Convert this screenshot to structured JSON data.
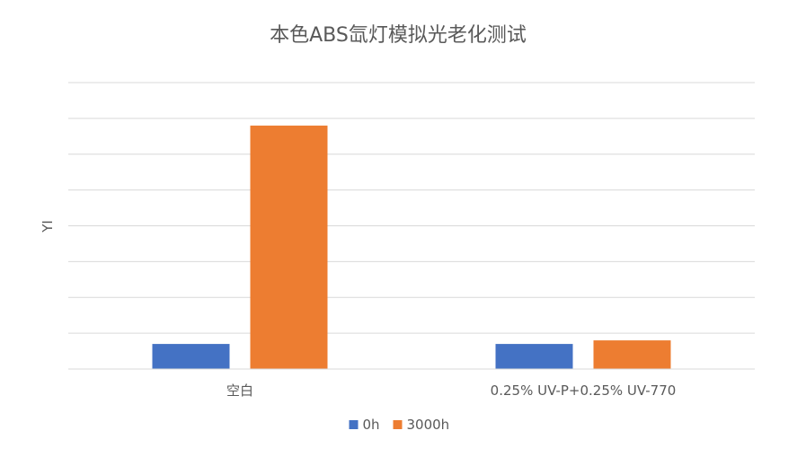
{
  "chart_data": {
    "type": "bar",
    "title": "本色ABS氙灯模拟光老化测试",
    "xlabel": "",
    "ylabel": "YI",
    "categories": [
      "空白",
      "0.25% UV-P+0.25% UV-770"
    ],
    "series": [
      {
        "name": "0h",
        "values": [
          7,
          7
        ],
        "color": "#4472C4"
      },
      {
        "name": "3000h",
        "values": [
          68,
          8
        ],
        "color": "#ED7D31"
      }
    ],
    "ylim": [
      0,
      80
    ],
    "y_tick_step": 10,
    "y_tick_labels_visible": false,
    "grid": true,
    "legend_position": "bottom"
  }
}
